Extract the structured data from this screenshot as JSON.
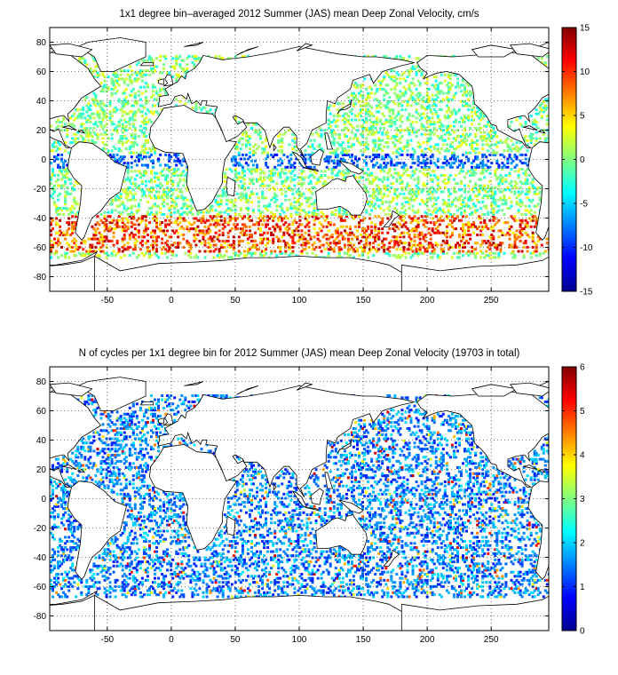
{
  "chart_data": [
    {
      "type": "heatmap",
      "title": "1x1 degree bin–averaged 2012 Summer (JAS) mean Deep Zonal Velocity, cm/s",
      "xlabel": "",
      "ylabel": "",
      "xlim": [
        -95,
        295
      ],
      "ylim": [
        -90,
        90
      ],
      "x_ticks": [
        -50,
        0,
        50,
        100,
        150,
        200,
        250
      ],
      "y_ticks": [
        -80,
        -60,
        -40,
        -20,
        0,
        20,
        40,
        60,
        80
      ],
      "grid": true,
      "colorbar": {
        "min": -15,
        "max": 15,
        "ticks": [
          -15,
          -10,
          -5,
          0,
          5,
          10,
          15
        ],
        "colormap": "jet"
      }
    },
    {
      "type": "heatmap",
      "title": "N of cycles per 1x1 degree bin for 2012 Summer (JAS) mean Deep Zonal Velocity (19703 in total)",
      "xlabel": "",
      "ylabel": "",
      "xlim": [
        -95,
        295
      ],
      "ylim": [
        -90,
        90
      ],
      "x_ticks": [
        -50,
        0,
        50,
        100,
        150,
        200,
        250
      ],
      "y_ticks": [
        -80,
        -60,
        -40,
        -20,
        0,
        20,
        40,
        60,
        80
      ],
      "grid": true,
      "colorbar": {
        "min": 0,
        "max": 6,
        "ticks": [
          0,
          1,
          2,
          3,
          4,
          5,
          6
        ],
        "colormap": "jet"
      }
    }
  ],
  "colors": {
    "axis": "#000000",
    "grid": "#000000",
    "land": "#ffffff",
    "coast": "#000000"
  }
}
